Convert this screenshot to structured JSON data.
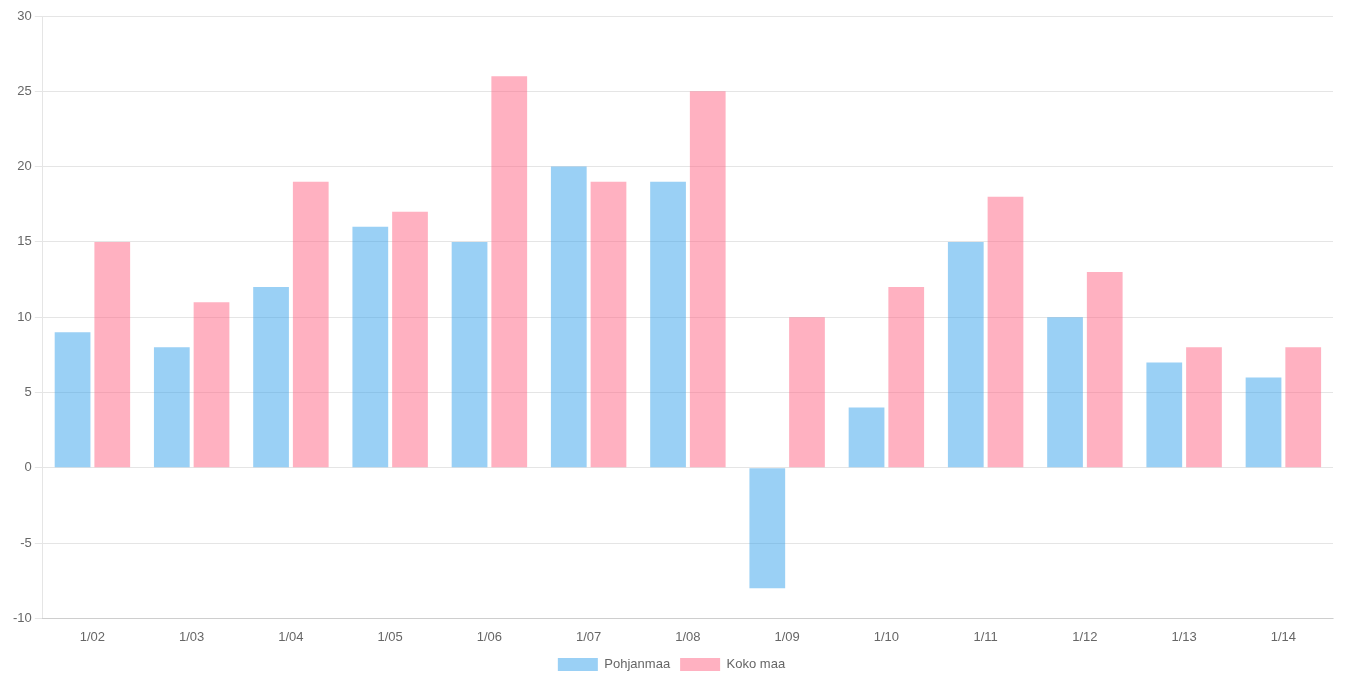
{
  "chart_data": {
    "type": "bar",
    "categories": [
      "1/02",
      "1/03",
      "1/04",
      "1/05",
      "1/06",
      "1/07",
      "1/08",
      "1/09",
      "1/10",
      "1/11",
      "1/12",
      "1/13",
      "1/14"
    ],
    "series": [
      {
        "name": "Pohjanmaa",
        "values": [
          9,
          8,
          12,
          16,
          15,
          20,
          19,
          -8,
          4,
          15,
          10,
          7,
          6
        ]
      },
      {
        "name": "Koko maa",
        "values": [
          15,
          11,
          19,
          17,
          26,
          19,
          25,
          10,
          12,
          18,
          13,
          8,
          8
        ]
      }
    ],
    "ylim": [
      -10,
      30
    ],
    "yticks": [
      -10,
      -5,
      0,
      5,
      10,
      15,
      20,
      25,
      30
    ],
    "grid": true,
    "legend": "bottom"
  }
}
